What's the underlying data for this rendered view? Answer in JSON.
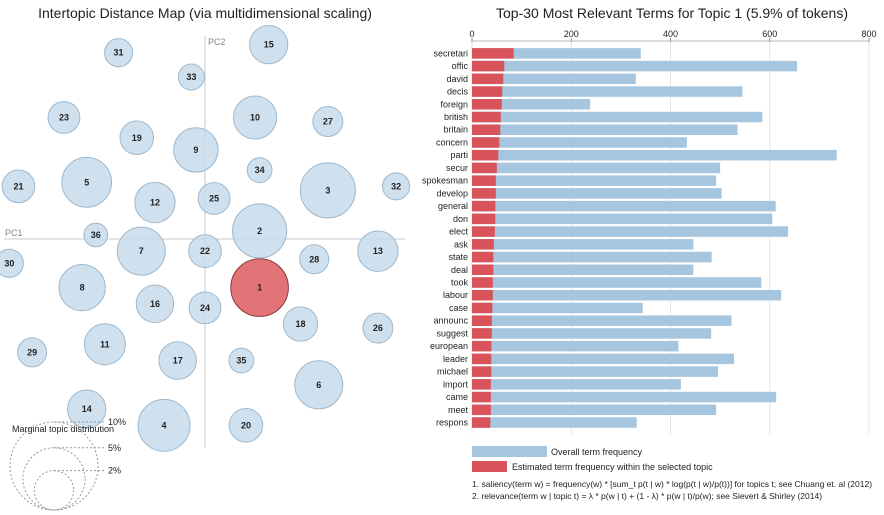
{
  "left_panel": {
    "title": "Intertopic Distance Map (via multidimensional scaling)",
    "pc1_label": "PC1",
    "pc2_label": "PC2",
    "selected_topic": "1",
    "marginal": {
      "title": "Marginal topic distribution",
      "levels": [
        "2%",
        "5%",
        "10%"
      ]
    }
  },
  "right_panel": {
    "title": "Top-30 Most Relevant Terms for Topic 1 (5.9% of tokens)",
    "legend_overall": "Overall term frequency",
    "legend_estimated": "Estimated term frequency within the selected topic",
    "note1": "1. saliency(term w) = frequency(w) * [sum_t p(t | w) * log(p(t | w)/p(t))] for topics t; see Chuang et. al (2012)",
    "note2": "2. relevance(term w | topic t) = λ * p(w | t) + (1 - λ) * p(w | t)/p(w); see Sievert & Shirley (2014)"
  },
  "colors": {
    "bubble_fill": "#c7dcec",
    "bubble_stroke": "#9fb8cc",
    "selected_fill": "#e06b70",
    "selected_stroke": "#8a3a3d",
    "overall_bar": "#a6c6e0",
    "topic_bar": "#d9535a"
  },
  "chart_data": [
    {
      "type": "scatter",
      "title": "Intertopic Distance Map (via multidimensional scaling)",
      "xlabel": "PC1",
      "ylabel": "PC2",
      "topics": [
        {
          "id": "1",
          "x": 0.12,
          "y": -0.12,
          "size": 5.9
        },
        {
          "id": "2",
          "x": 0.12,
          "y": 0.02,
          "size": 5.2
        },
        {
          "id": "3",
          "x": 0.27,
          "y": 0.12,
          "size": 5.4
        },
        {
          "id": "4",
          "x": -0.09,
          "y": -0.46,
          "size": 4.8
        },
        {
          "id": "5",
          "x": -0.26,
          "y": 0.14,
          "size": 4.4
        },
        {
          "id": "6",
          "x": 0.25,
          "y": -0.36,
          "size": 4.1
        },
        {
          "id": "7",
          "x": -0.14,
          "y": -0.03,
          "size": 4.1
        },
        {
          "id": "8",
          "x": -0.27,
          "y": -0.12,
          "size": 3.8
        },
        {
          "id": "9",
          "x": -0.02,
          "y": 0.22,
          "size": 3.5
        },
        {
          "id": "10",
          "x": 0.11,
          "y": 0.3,
          "size": 3.3
        },
        {
          "id": "11",
          "x": -0.22,
          "y": -0.26,
          "size": 3.0
        },
        {
          "id": "12",
          "x": -0.11,
          "y": 0.09,
          "size": 2.9
        },
        {
          "id": "13",
          "x": 0.38,
          "y": -0.03,
          "size": 2.9
        },
        {
          "id": "14",
          "x": -0.26,
          "y": -0.42,
          "size": 2.6
        },
        {
          "id": "15",
          "x": 0.14,
          "y": 0.48,
          "size": 2.6
        },
        {
          "id": "16",
          "x": -0.11,
          "y": -0.16,
          "size": 2.5
        },
        {
          "id": "17",
          "x": -0.06,
          "y": -0.3,
          "size": 2.5
        },
        {
          "id": "18",
          "x": 0.21,
          "y": -0.21,
          "size": 2.1
        },
        {
          "id": "19",
          "x": -0.15,
          "y": 0.25,
          "size": 2.0
        },
        {
          "id": "20",
          "x": 0.09,
          "y": -0.46,
          "size": 2.0
        },
        {
          "id": "21",
          "x": -0.41,
          "y": 0.13,
          "size": 1.9
        },
        {
          "id": "22",
          "x": 0.0,
          "y": -0.03,
          "size": 1.9
        },
        {
          "id": "23",
          "x": -0.31,
          "y": 0.3,
          "size": 1.8
        },
        {
          "id": "24",
          "x": 0.0,
          "y": -0.17,
          "size": 1.8
        },
        {
          "id": "25",
          "x": 0.02,
          "y": 0.1,
          "size": 1.8
        },
        {
          "id": "26",
          "x": 0.38,
          "y": -0.22,
          "size": 1.6
        },
        {
          "id": "27",
          "x": 0.27,
          "y": 0.29,
          "size": 1.6
        },
        {
          "id": "28",
          "x": 0.24,
          "y": -0.05,
          "size": 1.5
        },
        {
          "id": "29",
          "x": -0.38,
          "y": -0.28,
          "size": 1.5
        },
        {
          "id": "30",
          "x": -0.43,
          "y": -0.06,
          "size": 1.4
        },
        {
          "id": "31",
          "x": -0.19,
          "y": 0.46,
          "size": 1.4
        },
        {
          "id": "32",
          "x": 0.42,
          "y": 0.13,
          "size": 1.3
        },
        {
          "id": "33",
          "x": -0.03,
          "y": 0.4,
          "size": 1.2
        },
        {
          "id": "34",
          "x": 0.12,
          "y": 0.17,
          "size": 1.1
        },
        {
          "id": "35",
          "x": 0.08,
          "y": -0.3,
          "size": 1.1
        },
        {
          "id": "36",
          "x": -0.24,
          "y": 0.01,
          "size": 1.0
        }
      ],
      "marginal_levels": [
        2,
        5,
        10
      ]
    },
    {
      "type": "bar",
      "orientation": "horizontal",
      "title": "Top-30 Most Relevant Terms for Topic 1 (5.9% of tokens)",
      "xlim": [
        0,
        800
      ],
      "xticks": [
        0,
        200,
        400,
        600,
        800
      ],
      "categories": [
        "secretari",
        "offic",
        "david",
        "decis",
        "foreign",
        "british",
        "britain",
        "concern",
        "parti",
        "secur",
        "spokesman",
        "develop",
        "general",
        "don",
        "elect",
        "ask",
        "state",
        "deal",
        "took",
        "labour",
        "case",
        "announc",
        "suggest",
        "european",
        "leader",
        "michael",
        "import",
        "came",
        "meet",
        "respons"
      ],
      "series": [
        {
          "name": "Overall term frequency",
          "values": [
            340,
            655,
            330,
            545,
            238,
            585,
            535,
            433,
            735,
            500,
            492,
            503,
            612,
            605,
            637,
            446,
            483,
            446,
            583,
            623,
            344,
            523,
            482,
            416,
            528,
            496,
            421,
            613,
            492,
            332
          ]
        },
        {
          "name": "Estimated term frequency within the selected topic",
          "values": [
            84,
            65,
            63,
            61,
            60,
            58,
            57,
            55,
            53,
            50,
            48,
            48,
            47,
            47,
            46,
            44,
            43,
            43,
            42,
            42,
            41,
            40,
            40,
            39,
            39,
            39,
            38,
            38,
            38,
            37
          ]
        }
      ]
    }
  ]
}
